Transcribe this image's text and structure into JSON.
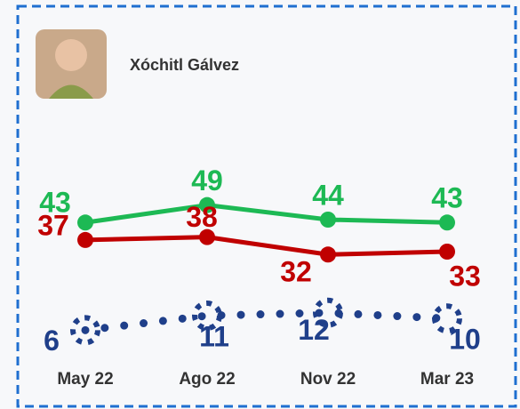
{
  "chart_data": {
    "type": "line",
    "title": "Xóchitl Gálvez",
    "categories": [
      "May 22",
      "Ago 22",
      "Nov 22",
      "Mar 23"
    ],
    "series": [
      {
        "color": "#1db954",
        "values": [
          43,
          49,
          44,
          43
        ]
      },
      {
        "color": "#c00000",
        "values": [
          37,
          38,
          32,
          33
        ]
      },
      {
        "color": "#1f3f8a",
        "values": [
          6,
          11,
          12,
          10
        ],
        "dotted": true
      }
    ],
    "ylim": [
      0,
      55
    ]
  }
}
